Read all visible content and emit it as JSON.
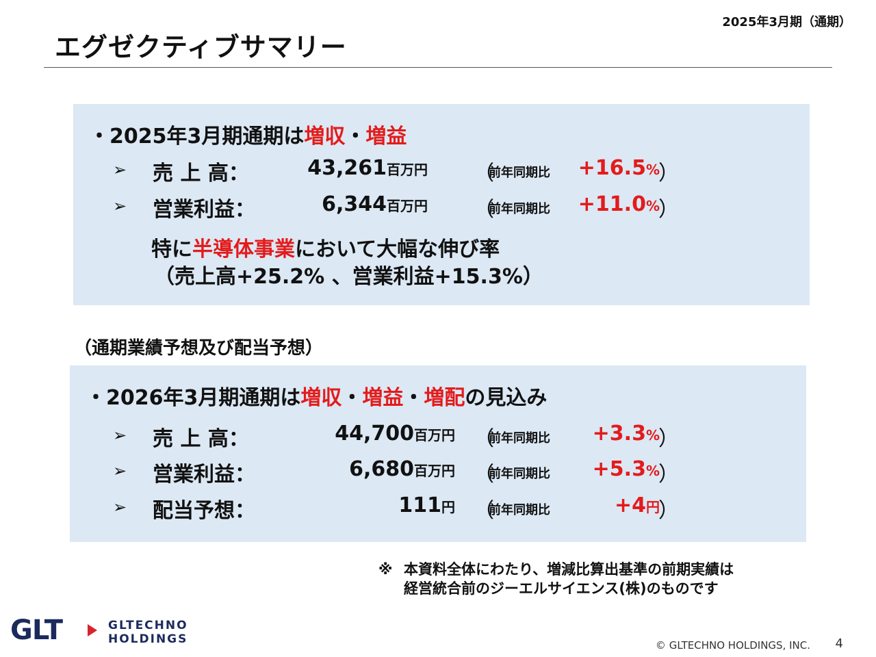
{
  "header": {
    "period": "2025年3月期（通期）",
    "title": "エグゼクティブサマリー"
  },
  "summary_2025": {
    "headline_prefix": "・2025年3月期通期は",
    "headline_highlight1": "増収",
    "headline_sep": "・",
    "headline_highlight2": "増益",
    "rows": [
      {
        "arrow": "➢",
        "label": "売 上 高：",
        "amount": "43,261",
        "unit": "百万円",
        "paren_open": "（",
        "cmp_label": "前年同期比",
        "change": "+16.5",
        "change_unit": "%",
        "paren_close": "）"
      },
      {
        "arrow": "➢",
        "label": "営業利益：",
        "amount": "6,344",
        "unit": "百万円",
        "paren_open": "（",
        "cmp_label": "前年同期比",
        "change": "+11.0",
        "change_unit": "%",
        "paren_close": "）"
      }
    ],
    "note_prefix": "特に",
    "note_highlight": "半導体事業",
    "note_suffix": "において大幅な伸び率",
    "note_detail": "（売上高+25.2% 、営業利益+15.3%）"
  },
  "forecast_heading": "（通期業績予想及び配当予想）",
  "forecast_2026": {
    "headline_prefix": "・2026年3月期通期は",
    "headline_highlight1": "増収",
    "headline_sep1": "・",
    "headline_highlight2": "増益",
    "headline_sep2": "・",
    "headline_highlight3": "増配",
    "headline_suffix": "の見込み",
    "rows": [
      {
        "arrow": "➢",
        "label": "売 上 高：",
        "amount": "44,700",
        "unit": "百万円",
        "paren_open": "（",
        "cmp_label": "前年同期比",
        "change": "+3.3",
        "change_unit": "%",
        "paren_close": "）"
      },
      {
        "arrow": "➢",
        "label": "営業利益：",
        "amount": "6,680",
        "unit": "百万円",
        "paren_open": "（",
        "cmp_label": "前年同期比",
        "change": "+5.3",
        "change_unit": "%",
        "paren_close": "）"
      },
      {
        "arrow": "➢",
        "label": "配当予想：",
        "amount": "111",
        "unit": "円",
        "paren_open": "（",
        "cmp_label": "前年同期比",
        "change": "+4",
        "change_unit": "円",
        "paren_close": "）"
      }
    ]
  },
  "footnote": {
    "mark": "※",
    "line1": "本資料全体にわたり、増減比算出基準の前期実績は",
    "line2": "経営統合前のジーエルサイエンス(株)のものです"
  },
  "logo": {
    "mark": "GLT",
    "name_line1": "GLTECHNO",
    "name_line2": "HOLDINGS"
  },
  "footer": {
    "copyright": "© GLTECHNO HOLDINGS, INC.",
    "page_number": "4"
  },
  "colors": {
    "accent_red": "#e31b1b",
    "box_background": "#dce8f4",
    "logo_navy": "#1b2a5c"
  }
}
